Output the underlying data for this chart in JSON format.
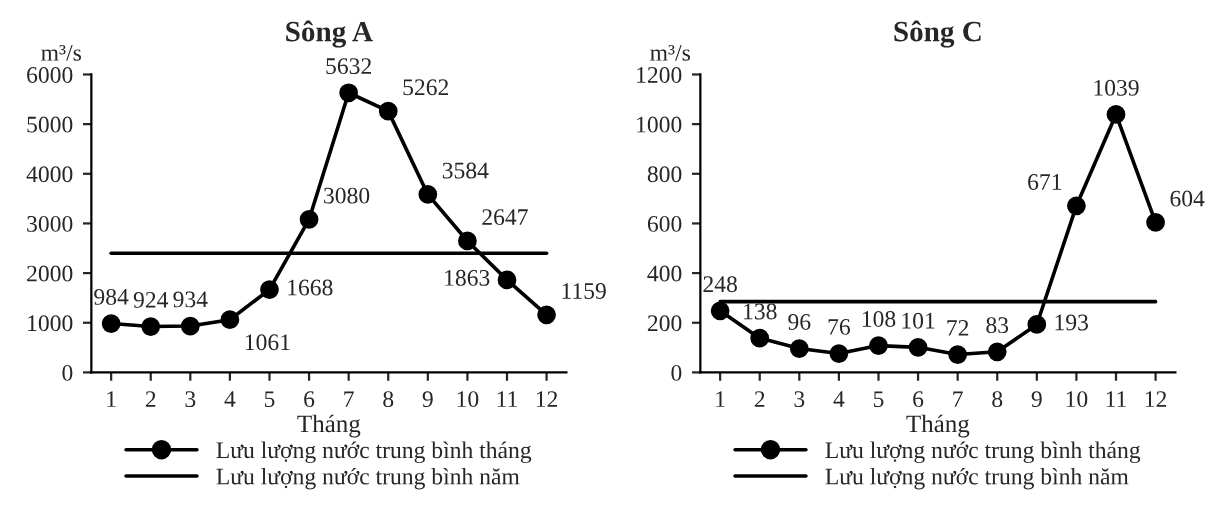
{
  "chart_data": [
    {
      "type": "line",
      "title": "Sông A",
      "xlabel": "Tháng",
      "ylabel": "m³/s",
      "categories": [
        "1",
        "2",
        "3",
        "4",
        "5",
        "6",
        "7",
        "8",
        "9",
        "10",
        "11",
        "12"
      ],
      "series": [
        {
          "name": "Lưu lượng nước trung bình tháng",
          "color": "#000000",
          "marker": "circle",
          "data_labels": true,
          "values": [
            984,
            924,
            934,
            1061,
            1668,
            3080,
            5632,
            5262,
            3584,
            2647,
            1863,
            1159
          ]
        },
        {
          "name": "Lưu lượng nước trung bình năm",
          "color": "#000000",
          "marker": "none",
          "values": [
            2400,
            2400,
            2400,
            2400,
            2400,
            2400,
            2400,
            2400,
            2400,
            2400,
            2400,
            2400
          ]
        }
      ],
      "ylim": [
        0,
        6000
      ],
      "yticks": [
        0,
        1000,
        2000,
        3000,
        4000,
        5000,
        6000
      ],
      "grid": false,
      "legend": "bottom"
    },
    {
      "type": "line",
      "title": "Sông C",
      "xlabel": "Tháng",
      "ylabel": "m³/s",
      "categories": [
        "1",
        "2",
        "3",
        "4",
        "5",
        "6",
        "7",
        "8",
        "9",
        "10",
        "11",
        "12"
      ],
      "series": [
        {
          "name": "Lưu lượng nước trung bình tháng",
          "color": "#000000",
          "marker": "circle",
          "data_labels": true,
          "values": [
            248,
            138,
            96,
            76,
            108,
            101,
            72,
            83,
            193,
            671,
            1039,
            604
          ]
        },
        {
          "name": "Lưu lượng nước trung bình năm",
          "color": "#000000",
          "marker": "none",
          "values": [
            285,
            285,
            285,
            285,
            285,
            285,
            285,
            285,
            285,
            285,
            285,
            285
          ]
        }
      ],
      "ylim": [
        0,
        1200
      ],
      "yticks": [
        0,
        200,
        400,
        600,
        800,
        1000,
        1200
      ],
      "grid": false,
      "legend": "bottom"
    }
  ]
}
